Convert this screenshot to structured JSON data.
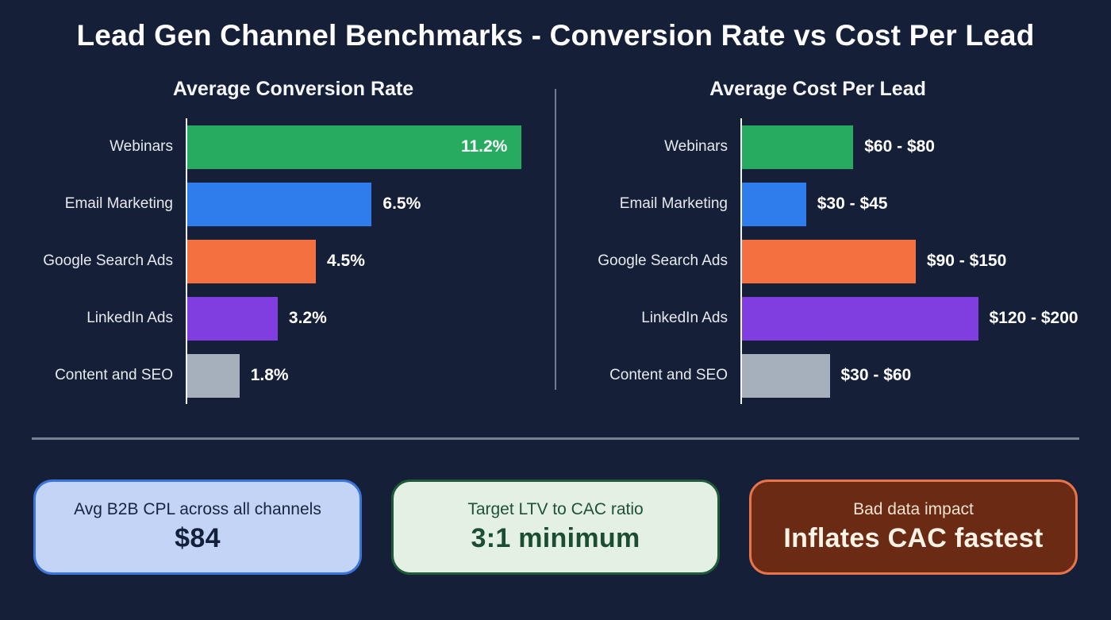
{
  "title": "Lead Gen Channel Benchmarks - Conversion Rate vs Cost Per Lead",
  "style": {
    "background": "#151f38",
    "axis_color": "#f3f4f6",
    "divider_color": "#717b8b",
    "bar_colors": [
      "#27ab60",
      "#2f7ded",
      "#f47041",
      "#803ee0",
      "#a6b0bd"
    ]
  },
  "chart_data": [
    {
      "type": "bar",
      "orientation": "horizontal",
      "title": "Average Conversion Rate",
      "categories": [
        "Webinars",
        "Email Marketing",
        "Google Search Ads",
        "LinkedIn Ads",
        "Content and SEO"
      ],
      "values": [
        11.2,
        6.5,
        4.5,
        3.2,
        1.8
      ],
      "labels": [
        "11.2%",
        "6.5%",
        "4.5%",
        "3.2%",
        "1.8%"
      ],
      "unit": "percent",
      "colors": [
        "#27ab60",
        "#2f7ded",
        "#f47041",
        "#803ee0",
        "#a6b0bd"
      ],
      "label_inside": [
        true,
        false,
        false,
        false,
        false
      ],
      "bar_pct": [
        91,
        50.2,
        35,
        24.6,
        14.2
      ],
      "grid": false,
      "legend": false
    },
    {
      "type": "bar",
      "orientation": "horizontal",
      "title": "Average Cost Per Lead",
      "categories": [
        "Webinars",
        "Email Marketing",
        "Google Search Ads",
        "LinkedIn Ads",
        "Content and SEO"
      ],
      "range_low": [
        60,
        30,
        90,
        120,
        30
      ],
      "range_high": [
        80,
        45,
        150,
        200,
        60
      ],
      "labels": [
        "$60 - $80",
        "$30 - $45",
        "$90 - $150",
        "$120 - $200",
        "$30 - $60"
      ],
      "unit": "usd",
      "colors": [
        "#27ab60",
        "#2f7ded",
        "#f47041",
        "#803ee0",
        "#a6b0bd"
      ],
      "label_inside": [
        false,
        false,
        false,
        false,
        false
      ],
      "bar_pct": [
        33,
        19,
        51.5,
        70,
        26
      ],
      "grid": false,
      "legend": false
    }
  ],
  "cards": [
    {
      "caption": "Avg B2B CPL across all channels",
      "value": "$84",
      "bg": "#c3d4f7",
      "border": "#3b74da",
      "caption_color": "#18243f",
      "value_color": "#141f3a"
    },
    {
      "caption": "Target LTV to CAC ratio",
      "value": "3:1 minimum",
      "bg": "#e3f0e3",
      "border": "#1f5a3a",
      "caption_color": "#1d5138",
      "value_color": "#1b4d33"
    },
    {
      "caption": "Bad data impact",
      "value": "Inflates CAC fastest",
      "bg": "#6b2a13",
      "border": "#e7744b",
      "caption_color": "#f3e3cf",
      "value_color": "#fbf3e6"
    }
  ]
}
